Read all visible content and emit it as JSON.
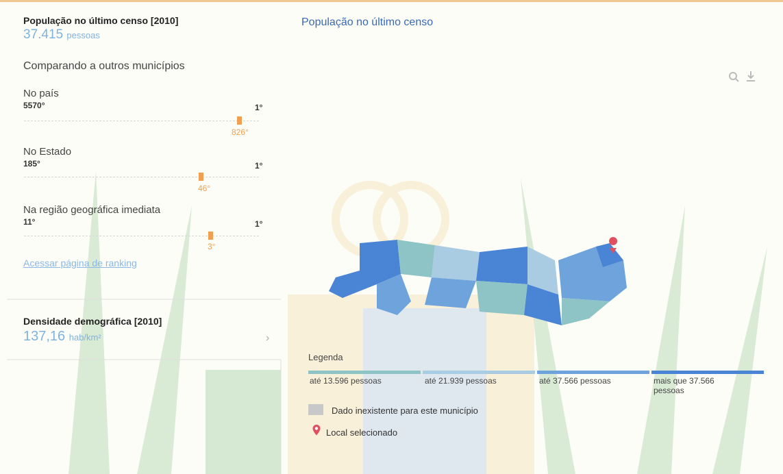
{
  "indicator": {
    "title": "População no último censo [2010]",
    "value": "37.415",
    "unit": "pessoas",
    "compare": "Comparando a outros municípios",
    "rankings": [
      {
        "label": "No país",
        "low": "5570°",
        "high": "1°",
        "position": "826°"
      },
      {
        "label": "No Estado",
        "low": "185°",
        "high": "1°",
        "position": "46°"
      },
      {
        "label": "Na região geográfica imediata",
        "low": "11°",
        "high": "1°",
        "position": "3°"
      }
    ],
    "link": "Acessar página de ranking"
  },
  "density": {
    "title": "Densidade demográfica [2010]",
    "value": "137,16",
    "unit": "hab/km²"
  },
  "map": {
    "title": "População no último censo",
    "legend": {
      "title": "Legenda",
      "items": [
        {
          "label": "até 13.596 pessoas",
          "color": "#8fc4c6"
        },
        {
          "label": "até 21.939 pessoas",
          "color": "#a9cce3"
        },
        {
          "label": "até 37.566 pessoas",
          "color": "#6fa3dc"
        },
        {
          "label": "mais que 37.566 pessoas",
          "color": "#4a84d4"
        }
      ],
      "missing": "Dado inexistente para este município",
      "selected": "Local selecionado"
    }
  }
}
